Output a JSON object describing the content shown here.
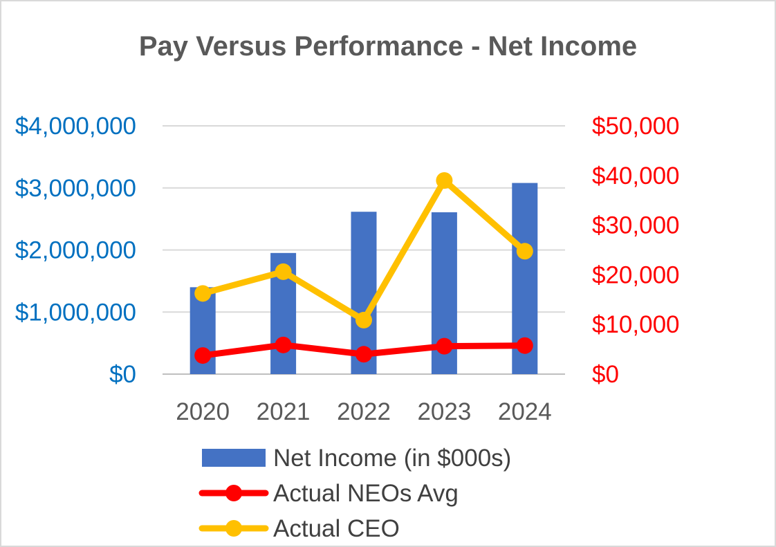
{
  "chart_data": {
    "type": "bar",
    "title": "Pay Versus Performance - Net Income",
    "categories": [
      "2020",
      "2021",
      "2022",
      "2023",
      "2024"
    ],
    "y_left": {
      "lim": [
        0,
        4000000
      ],
      "ticks": [
        0,
        1000000,
        2000000,
        3000000,
        4000000
      ],
      "tick_labels": [
        "$0",
        "$1,000,000",
        "$2,000,000",
        "$3,000,000",
        "$4,000,000"
      ],
      "color": "#0070c0"
    },
    "y_right": {
      "lim": [
        0,
        50000
      ],
      "ticks": [
        0,
        10000,
        20000,
        30000,
        40000,
        50000
      ],
      "tick_labels": [
        "$0",
        "$10,000",
        "$20,000",
        "$30,000",
        "$40,000",
        "$50,000"
      ],
      "color": "#ff0000"
    },
    "grid": true,
    "legend_position": "bottom",
    "series": [
      {
        "name": "Net Income (in $000s)",
        "kind": "bar",
        "axis": "right",
        "color": "#4472c4",
        "values": [
          17500,
          24400,
          32700,
          32600,
          38500
        ]
      },
      {
        "name": "Actual NEOs Avg",
        "kind": "line",
        "axis": "left",
        "color": "#ff0000",
        "values": [
          300000,
          470000,
          320000,
          450000,
          460000
        ]
      },
      {
        "name": "Actual CEO",
        "kind": "line",
        "axis": "left",
        "color": "#ffc000",
        "values": [
          1300000,
          1650000,
          870000,
          3120000,
          1980000
        ]
      }
    ]
  }
}
